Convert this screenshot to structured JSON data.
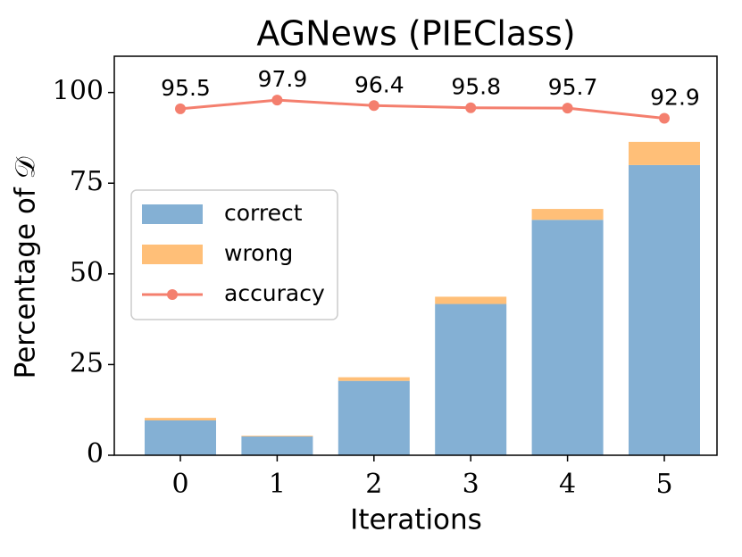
{
  "chart_data": {
    "type": "bar",
    "stacked": true,
    "title": "AGNews (PIEClass)",
    "xlabel": "Iterations",
    "ylabel": "Percentage of 𝒟",
    "categories": [
      "0",
      "1",
      "2",
      "3",
      "4",
      "5"
    ],
    "series": [
      {
        "name": "correct",
        "color": "#84b0d4",
        "values": [
          9.6,
          5.2,
          20.5,
          41.7,
          64.9,
          80.0
        ]
      },
      {
        "name": "wrong",
        "color": "#ffbf78",
        "values": [
          0.7,
          0.2,
          1.0,
          2.0,
          3.0,
          6.4
        ]
      },
      {
        "name": "accuracy",
        "type": "line",
        "color": "#f47f6e",
        "values": [
          95.5,
          97.9,
          96.4,
          95.8,
          95.7,
          92.9
        ]
      }
    ],
    "ylim": [
      0,
      110
    ],
    "yticks": [
      0,
      25,
      50,
      75,
      100
    ],
    "legend": "center left",
    "grid": false
  }
}
